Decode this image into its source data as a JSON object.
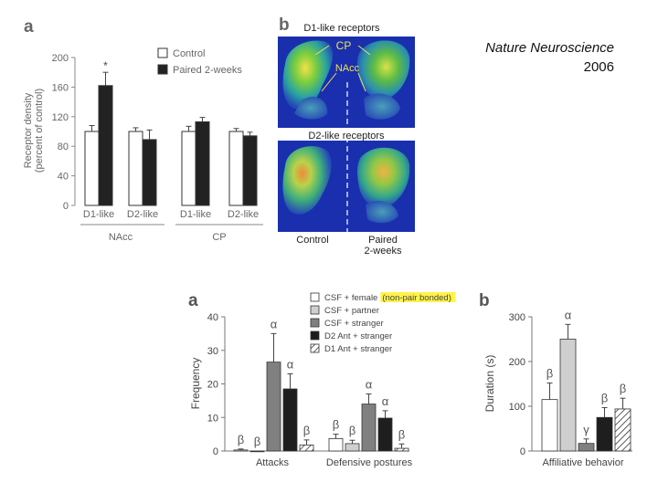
{
  "journal": {
    "name": "Nature Neuroscience",
    "year": "2006"
  },
  "panel_top_a": {
    "letter": "a"
  },
  "panel_top_b": {
    "letter": "b",
    "d1_title": "D1-like receptors",
    "d2_title": "D2-like receptors",
    "label_cp": "CP",
    "label_nacc": "NAcc",
    "label_control": "Control",
    "label_paired_1": "Paired",
    "label_paired_2": "2-weeks"
  },
  "panel_bottom_a": {
    "letter": "a"
  },
  "panel_bottom_b": {
    "letter": "b"
  },
  "colors": {
    "white_bar": "#ffffff",
    "black_bar": "#222222",
    "light_gray": "#cfcfcf",
    "dark_gray": "#808080",
    "near_black": "#1e1e1e",
    "highlight": "#fff34a",
    "scan_bg": "#1a2fae"
  },
  "chart_data": [
    {
      "id": "receptor_density",
      "type": "bar",
      "ylabel": "Receptor density\n(percent of control)",
      "ylim": [
        0,
        200
      ],
      "yticks": [
        0,
        40,
        80,
        120,
        160,
        200
      ],
      "categories": [
        "D1-like",
        "D2-like",
        "D1-like",
        "D2-like"
      ],
      "groups": [
        {
          "label": "NAcc",
          "categories": [
            "D1-like",
            "D2-like"
          ]
        },
        {
          "label": "CP",
          "categories": [
            "D1-like",
            "D2-like"
          ]
        }
      ],
      "legend_position": "top-right",
      "series": [
        {
          "name": "Control",
          "color": "#ffffff",
          "values": [
            100,
            100,
            100,
            100
          ],
          "errors": [
            8,
            5,
            7,
            4
          ]
        },
        {
          "name": "Paired 2-weeks",
          "color": "#222222",
          "values": [
            162,
            89,
            113,
            94
          ],
          "errors": [
            18,
            13,
            6,
            5
          ]
        }
      ],
      "annotations": [
        {
          "category_index": 0,
          "series": "Paired 2-weeks",
          "text": "*"
        }
      ]
    },
    {
      "id": "aggression",
      "type": "bar",
      "ylabel": "Frequency",
      "ylim": [
        0,
        40
      ],
      "yticks": [
        0,
        10,
        20,
        30,
        40
      ],
      "categories": [
        "Attacks",
        "Defensive postures"
      ],
      "legend_position": "top-right",
      "series": [
        {
          "name": "CSF + female",
          "name_highlight": "(non-pair bonded)",
          "color": "#ffffff",
          "pattern": "none",
          "values": [
            0.3,
            3.7
          ],
          "errors": [
            0.3,
            1.3
          ],
          "symbols": [
            "β",
            "β"
          ]
        },
        {
          "name": "CSF + partner",
          "color": "#cfcfcf",
          "pattern": "none",
          "values": [
            0,
            2.2
          ],
          "errors": [
            0,
            1.0
          ],
          "symbols": [
            "β",
            "β"
          ]
        },
        {
          "name": "CSF + stranger",
          "color": "#808080",
          "pattern": "none",
          "values": [
            26.5,
            14
          ],
          "errors": [
            8.5,
            3.0
          ],
          "symbols": [
            "α",
            "α"
          ]
        },
        {
          "name": "D2 Ant + stranger",
          "color": "#1e1e1e",
          "pattern": "none",
          "values": [
            18.5,
            9.8
          ],
          "errors": [
            4.5,
            2.2
          ],
          "symbols": [
            "α",
            "α"
          ]
        },
        {
          "name": "D1 Ant + stranger",
          "color": "#ffffff",
          "pattern": "hatch",
          "values": [
            1.8,
            0.8
          ],
          "errors": [
            1.5,
            1.3
          ],
          "symbols": [
            "β",
            "β"
          ]
        }
      ]
    },
    {
      "id": "affiliative",
      "type": "bar",
      "ylabel": "Duration (s)",
      "ylim": [
        0,
        300
      ],
      "yticks": [
        0,
        100,
        200,
        300
      ],
      "categories": [
        "Affiliative behavior"
      ],
      "series": [
        {
          "name": "CSF + female (non-pair bonded)",
          "color": "#ffffff",
          "pattern": "none",
          "values": [
            115
          ],
          "errors": [
            37
          ],
          "symbols": [
            "β"
          ]
        },
        {
          "name": "CSF + partner",
          "color": "#cfcfcf",
          "pattern": "none",
          "values": [
            250
          ],
          "errors": [
            33
          ],
          "symbols": [
            "α"
          ]
        },
        {
          "name": "CSF + stranger",
          "color": "#808080",
          "pattern": "none",
          "values": [
            17
          ],
          "errors": [
            10
          ],
          "symbols": [
            "γ"
          ]
        },
        {
          "name": "D2 Ant + stranger",
          "color": "#1e1e1e",
          "pattern": "none",
          "values": [
            75
          ],
          "errors": [
            22
          ],
          "symbols": [
            "β"
          ]
        },
        {
          "name": "D1 Ant + stranger",
          "color": "#ffffff",
          "pattern": "hatch",
          "values": [
            94
          ],
          "errors": [
            24
          ],
          "symbols": [
            "β"
          ]
        }
      ]
    }
  ]
}
